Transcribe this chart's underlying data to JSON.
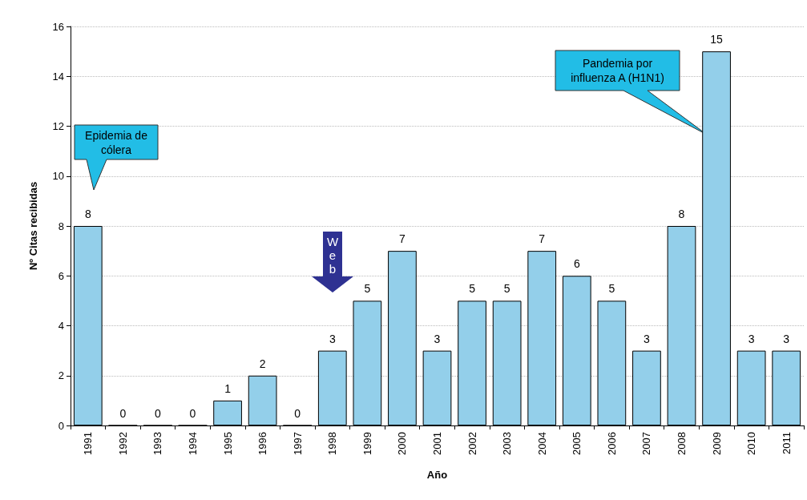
{
  "chart_data": {
    "type": "bar",
    "xlabel": "Año",
    "ylabel": "Nº Citas recibidas",
    "categories": [
      "1991",
      "1992",
      "1993",
      "1994",
      "1995",
      "1996",
      "1997",
      "1998",
      "1999",
      "2000",
      "2001",
      "2002",
      "2003",
      "2004",
      "2005",
      "2006",
      "2007",
      "2008",
      "2009",
      "2010",
      "2011"
    ],
    "values": [
      8,
      0,
      0,
      0,
      1,
      2,
      0,
      3,
      5,
      7,
      3,
      5,
      5,
      7,
      6,
      5,
      3,
      8,
      15,
      3,
      3
    ],
    "color": "#93cfea",
    "data_labels": true,
    "ylim": [
      0,
      16
    ],
    "yticks": [
      0,
      2,
      4,
      6,
      8,
      10,
      12,
      14,
      16
    ],
    "grid": "y",
    "annotations": [
      "Epidemia de cólera",
      "Web",
      "Pandemia por influenza A (H1N1)"
    ]
  }
}
